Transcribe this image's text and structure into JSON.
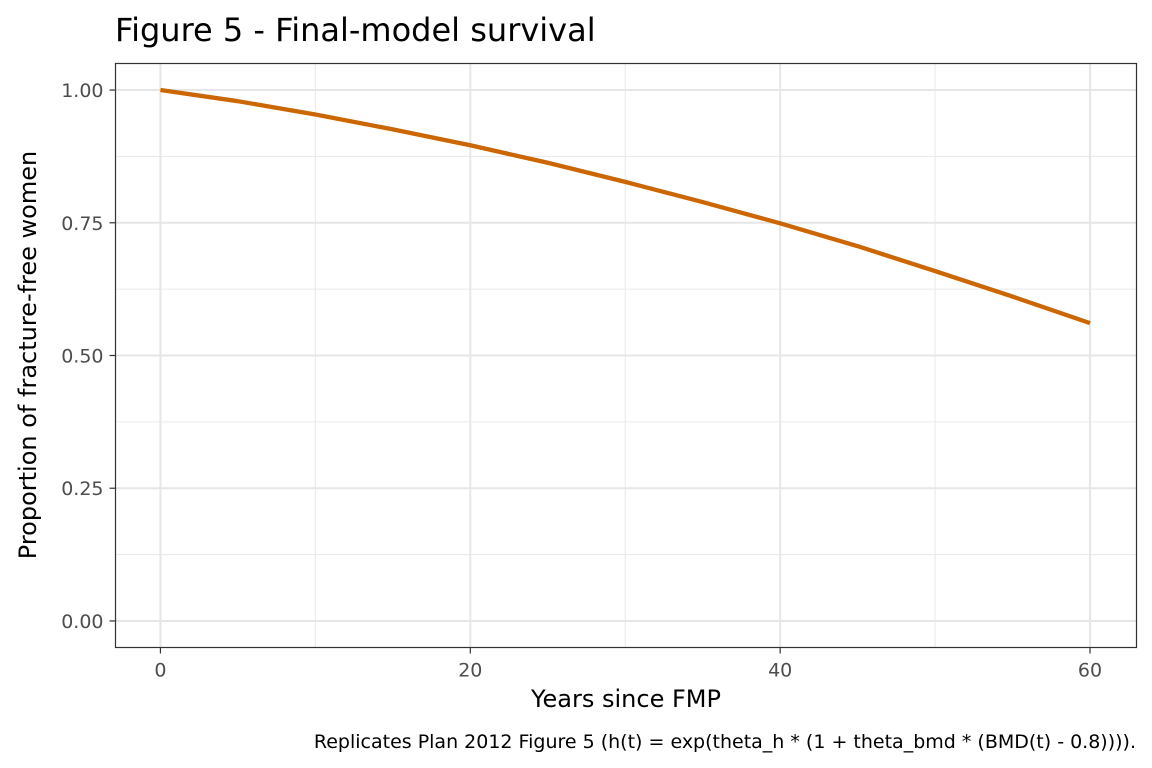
{
  "chart_data": {
    "type": "line",
    "title": "Figure 5 - Final-model survival",
    "xlabel": "Years since FMP",
    "ylabel": "Proportion of fracture-free women",
    "caption": "Replicates Plan 2012 Figure 5 (h(t) = exp(theta_h * (1 + theta_bmd * (BMD(t) - 0.8)))).",
    "xlim": [
      -2.9,
      63
    ],
    "ylim": [
      -0.05,
      1.05
    ],
    "x_ticks": [
      0,
      20,
      40,
      60
    ],
    "x_tick_labels": [
      "0",
      "20",
      "40",
      "60"
    ],
    "y_ticks": [
      0,
      0.25,
      0.5,
      0.75,
      1
    ],
    "y_tick_labels": [
      "0.00",
      "0.25",
      "0.50",
      "0.75",
      "1.00"
    ],
    "grid": true,
    "series": [
      {
        "color": "#cc6600",
        "x": [
          0,
          5,
          10,
          15,
          20,
          25,
          30,
          35,
          40,
          45,
          50,
          55,
          60
        ],
        "y": [
          1.0,
          0.979,
          0.954,
          0.926,
          0.896,
          0.863,
          0.827,
          0.789,
          0.749,
          0.706,
          0.659,
          0.611,
          0.561
        ]
      }
    ]
  }
}
